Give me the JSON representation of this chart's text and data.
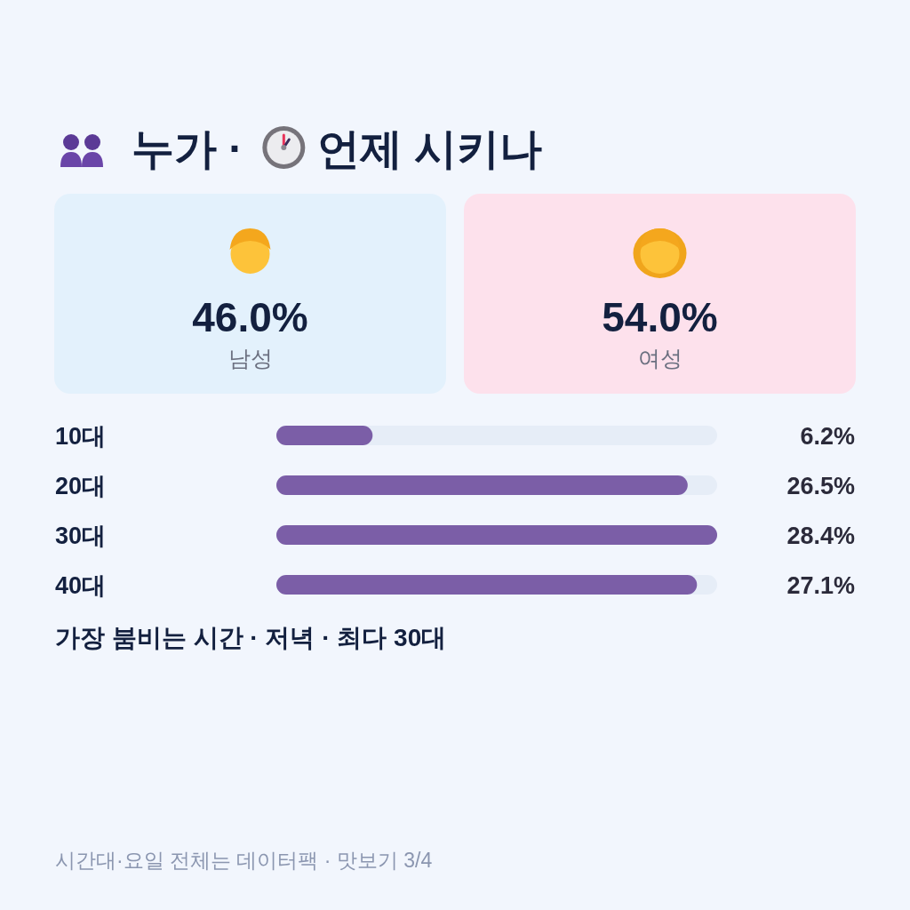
{
  "chart_data": [
    {
      "type": "other",
      "title": "누가 · 언제 시키나",
      "categories": [
        "남성",
        "여성"
      ],
      "value_labels": [
        "46.0%",
        "54.0%"
      ],
      "colors": [
        "#e3f1fc",
        "#fde1ec"
      ]
    },
    {
      "type": "bar",
      "orientation": "horizontal",
      "categories": [
        "10대",
        "20대",
        "30대",
        "40대"
      ],
      "values": [
        6.2,
        26.5,
        28.4,
        27.1
      ],
      "value_labels": [
        "6.2%",
        "26.5%",
        "28.4%",
        "27.1%"
      ],
      "color": "#7b5ea7",
      "annotations": [
        "가장 붐비는 시간 · 저녁 · 최다 30대",
        "시간대·요일 전체는 데이터팩 · 맛보기 3/4"
      ]
    }
  ]
}
